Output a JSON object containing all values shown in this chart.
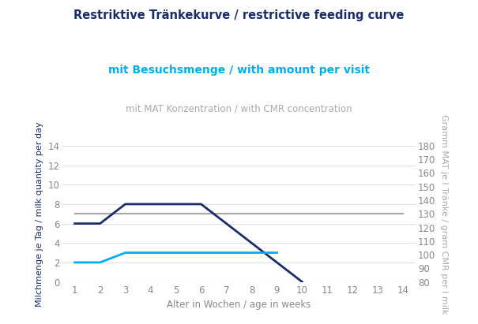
{
  "title": "Restriktive Tränkekurve / restrictive feeding curve",
  "subtitle_cyan": "mit Besuchsmenge / with amount per visit",
  "subtitle_gray": "mit MAT Konzentration / with CMR concentration",
  "xlabel": "Alter in Wochen / age in weeks",
  "ylabel_left": "Milchmenge je Tag / milk quantity per day",
  "ylabel_right": "Gramm MAT je l Tränke / gram CMR per l milk",
  "dark_blue_line": {
    "x": [
      1,
      2,
      3,
      6,
      8.5,
      10
    ],
    "y": [
      6,
      6,
      8,
      8,
      3,
      0
    ],
    "color": "#1a2d6b",
    "linewidth": 2.0
  },
  "cyan_line": {
    "x": [
      1,
      2,
      3,
      8.5,
      9
    ],
    "y": [
      2,
      2,
      3,
      3,
      3
    ],
    "color": "#00aeef",
    "linewidth": 2.0
  },
  "gray_line": {
    "x": [
      1,
      14
    ],
    "y": [
      7,
      7
    ],
    "color": "#aaaaaa",
    "linewidth": 1.6
  },
  "xlim": [
    0.5,
    14.5
  ],
  "ylim_left": [
    0,
    14
  ],
  "ylim_right": [
    80,
    180
  ],
  "xticks": [
    1,
    2,
    3,
    4,
    5,
    6,
    7,
    8,
    9,
    10,
    11,
    12,
    13,
    14
  ],
  "yticks_left": [
    0,
    2,
    4,
    6,
    8,
    10,
    12,
    14
  ],
  "yticks_right": [
    80,
    90,
    100,
    110,
    120,
    130,
    140,
    150,
    160,
    170,
    180
  ],
  "background_color": "#ffffff",
  "grid_color": "#e0e0e0",
  "title_color": "#1a2d6b",
  "subtitle_cyan_color": "#00aeef",
  "subtitle_gray_color": "#aaaaaa",
  "ylabel_left_color": "#1a2d6b",
  "ylabel_right_color": "#aaaaaa",
  "axis_label_color": "#888888",
  "tick_color": "#888888"
}
